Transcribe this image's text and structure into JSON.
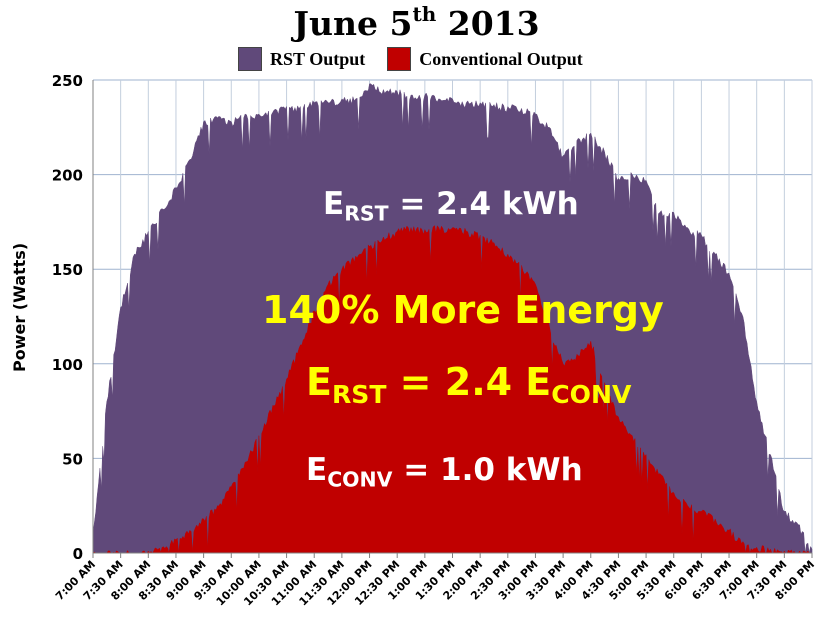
{
  "chart_data": {
    "type": "area",
    "title": "June 5",
    "title_sup": "th",
    "title_year": "2013",
    "ylabel": "Power (Watts)",
    "xlabel": "",
    "ylim": [
      0,
      250
    ],
    "yticks": [
      0,
      50,
      100,
      150,
      200,
      250
    ],
    "grid": true,
    "legend_position": "top",
    "categories": [
      "7:00 AM",
      "7:30 AM",
      "8:00 AM",
      "8:30 AM",
      "9:00 AM",
      "9:30 AM",
      "10:00 AM",
      "10:30 AM",
      "11:00 AM",
      "11:30 AM",
      "12:00 PM",
      "12:30 PM",
      "1:00 PM",
      "1:30 PM",
      "2:00 PM",
      "2:30 PM",
      "3:00 PM",
      "3:30 PM",
      "4:00 PM",
      "4:30 PM",
      "5:00 PM",
      "5:30 PM",
      "6:00 PM",
      "6:30 PM",
      "7:00 PM",
      "7:30 PM",
      "8:00 PM"
    ],
    "series": [
      {
        "name": "RST Output",
        "color": "#60497a",
        "x": [
          "7:00 AM",
          "7:15 AM",
          "7:30 AM",
          "7:45 AM",
          "8:00 AM",
          "8:15 AM",
          "8:30 AM",
          "8:45 AM",
          "9:00 AM",
          "9:15 AM",
          "9:30 AM",
          "9:45 AM",
          "10:00 AM",
          "10:15 AM",
          "10:30 AM",
          "10:45 AM",
          "11:00 AM",
          "11:15 AM",
          "11:30 AM",
          "11:45 AM",
          "12:00 PM",
          "12:15 PM",
          "12:30 PM",
          "12:45 PM",
          "1:00 PM",
          "1:15 PM",
          "1:30 PM",
          "1:45 PM",
          "2:00 PM",
          "2:15 PM",
          "2:30 PM",
          "2:45 PM",
          "3:00 PM",
          "3:15 PM",
          "3:30 PM",
          "3:45 PM",
          "4:00 PM",
          "4:15 PM",
          "4:30 PM",
          "4:45 PM",
          "5:00 PM",
          "5:15 PM",
          "5:30 PM",
          "5:45 PM",
          "6:00 PM",
          "6:15 PM",
          "6:30 PM",
          "6:45 PM",
          "7:00 PM",
          "7:15 PM",
          "7:30 PM",
          "7:45 PM",
          "8:00 PM"
        ],
        "values": [
          10,
          80,
          130,
          158,
          170,
          182,
          193,
          208,
          228,
          230,
          228,
          232,
          232,
          233,
          236,
          236,
          238,
          238,
          240,
          240,
          248,
          245,
          244,
          242,
          242,
          240,
          240,
          238,
          238,
          237,
          236,
          235,
          232,
          225,
          210,
          218,
          222,
          212,
          198,
          200,
          197,
          180,
          180,
          172,
          168,
          158,
          148,
          125,
          80,
          52,
          22,
          15,
          2
        ]
      },
      {
        "name": "Conventional Output",
        "color": "#c00000",
        "x": [
          "7:00 AM",
          "7:15 AM",
          "7:30 AM",
          "7:45 AM",
          "8:00 AM",
          "8:15 AM",
          "8:30 AM",
          "8:45 AM",
          "9:00 AM",
          "9:15 AM",
          "9:30 AM",
          "9:45 AM",
          "10:00 AM",
          "10:15 AM",
          "10:30 AM",
          "10:45 AM",
          "11:00 AM",
          "11:15 AM",
          "11:30 AM",
          "11:45 AM",
          "12:00 PM",
          "12:15 PM",
          "12:30 PM",
          "12:45 PM",
          "1:00 PM",
          "1:15 PM",
          "1:30 PM",
          "1:45 PM",
          "2:00 PM",
          "2:15 PM",
          "2:30 PM",
          "2:45 PM",
          "3:00 PM",
          "3:15 PM",
          "3:30 PM",
          "3:45 PM",
          "4:00 PM",
          "4:15 PM",
          "4:30 PM",
          "4:45 PM",
          "5:00 PM",
          "5:15 PM",
          "5:30 PM",
          "5:45 PM",
          "6:00 PM",
          "6:15 PM",
          "6:30 PM",
          "6:45 PM",
          "7:00 PM",
          "7:15 PM",
          "7:30 PM",
          "7:45 PM",
          "8:00 PM"
        ],
        "values": [
          0,
          0,
          0,
          0,
          1,
          3,
          7,
          12,
          18,
          25,
          35,
          48,
          62,
          78,
          92,
          110,
          128,
          142,
          150,
          157,
          162,
          167,
          170,
          172,
          171,
          172,
          172,
          170,
          168,
          164,
          158,
          152,
          142,
          120,
          100,
          105,
          112,
          90,
          72,
          62,
          52,
          42,
          32,
          25,
          22,
          18,
          12,
          6,
          3,
          2,
          1,
          0,
          0
        ]
      }
    ]
  },
  "annotations": {
    "e_rst_kwh": {
      "main": "E",
      "sub": "RST",
      "rest": " = 2.4 kWh"
    },
    "more_energy": "140% More Energy",
    "ratio": {
      "main": "E",
      "sub": "RST",
      "mid": " = 2.4 E",
      "sub2": "CONV"
    },
    "e_conv_kwh": {
      "main": "E",
      "sub": "CONV",
      "rest": " = 1.0 kWh"
    }
  }
}
